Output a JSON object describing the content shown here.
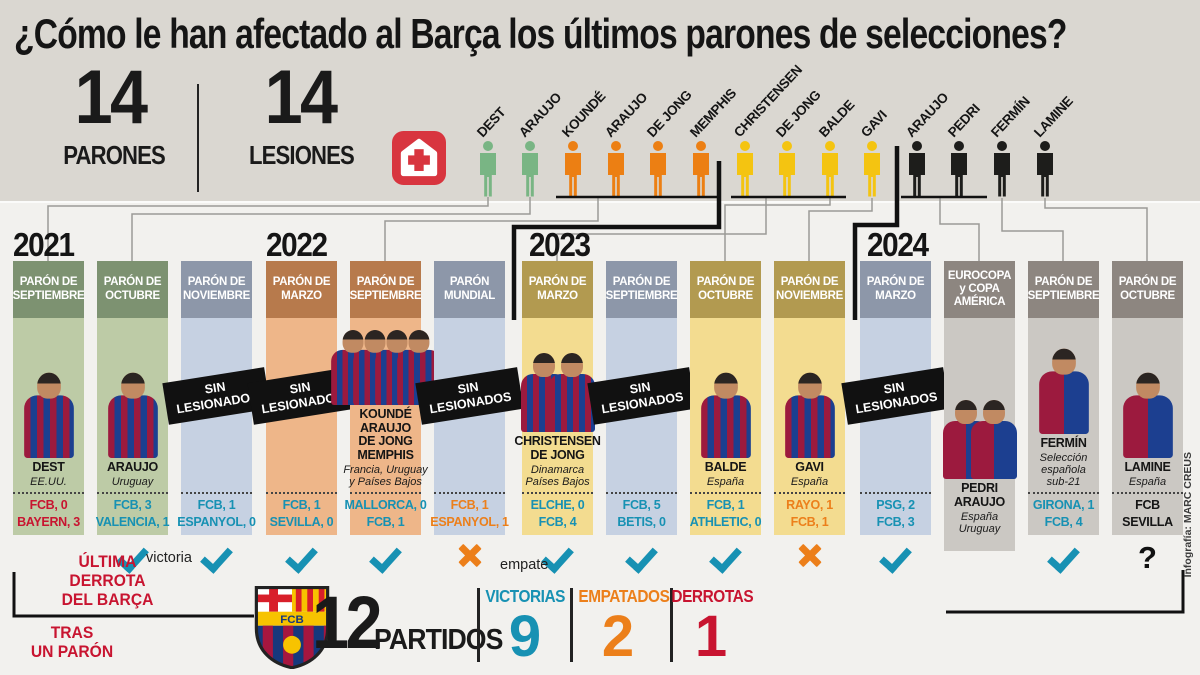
{
  "title": "¿Cómo le han afectado al Barça los últimos parones de selecciones?",
  "stats": {
    "parones": {
      "value": "14",
      "label": "PARONES"
    },
    "lesiones": {
      "value": "14",
      "label": "LESIONES"
    }
  },
  "colors": {
    "win_teal": "#1791b3",
    "draw_orange": "#ec7f1a",
    "loss_red": "#c81430",
    "figure_green": "#79b584",
    "figure_orange": "#ec7f13",
    "figure_yellow": "#f4c411",
    "figure_black": "#1d1d1b",
    "medkit_red": "#d8353f"
  },
  "figures": [
    {
      "name": "DEST",
      "color": "#79b584"
    },
    {
      "name": "ARAUJO",
      "color": "#79b584"
    },
    {
      "name": "KOUNDÉ",
      "color": "#ec7f13"
    },
    {
      "name": "ARAUJO",
      "color": "#ec7f13"
    },
    {
      "name": "DE JONG",
      "color": "#ec7f13"
    },
    {
      "name": "MEMPHIS",
      "color": "#ec7f13"
    },
    {
      "name": "CHRISTENSEN",
      "color": "#f4c411"
    },
    {
      "name": "DE JONG",
      "color": "#f4c411"
    },
    {
      "name": "BALDE",
      "color": "#f4c411"
    },
    {
      "name": "GAVI",
      "color": "#f4c411"
    },
    {
      "name": "ARAUJO",
      "color": "#1d1d1b"
    },
    {
      "name": "PEDRI",
      "color": "#1d1d1b"
    },
    {
      "name": "FERMÍN",
      "color": "#1d1d1b"
    },
    {
      "name": "LAMINE",
      "color": "#1d1d1b"
    }
  ],
  "years": [
    {
      "label": "2021",
      "columns": [
        {
          "header": "PARÓN DE\nSEPTIEMBRE",
          "theme": "green",
          "players": 1,
          "names": "DEST",
          "origin": "EE.UU.",
          "score": [
            "FCB, 0",
            "BAYERN, 3"
          ],
          "score_type": "loss",
          "result": "none"
        },
        {
          "header": "PARÓN DE\nOCTUBRE",
          "theme": "green",
          "players": 1,
          "names": "ARAUJO",
          "origin": "Uruguay",
          "score": [
            "FCB, 3",
            "VALENCIA, 1"
          ],
          "score_type": "win",
          "result": "check"
        },
        {
          "header": "PARÓN DE\nNOVIEMBRE",
          "theme": "blue",
          "players": 0,
          "sin": true,
          "score": [
            "FCB, 1",
            "ESPANYOL, 0"
          ],
          "score_type": "win",
          "result": "check"
        }
      ]
    },
    {
      "label": "2022",
      "columns": [
        {
          "header": "PARÓN DE\nMARZO",
          "theme": "orange",
          "players": 0,
          "sin": true,
          "score": [
            "FCB, 1",
            "SEVILLA, 0"
          ],
          "score_type": "win",
          "result": "check"
        },
        {
          "header": "PARÓN DE\nSEPTIEMBRE",
          "theme": "orange",
          "players": 4,
          "names": "KOUNDÉ\nARAUJO\nDE JONG\nMEMPHIS",
          "origin": "Francia, Uruguay\ny Países Bajos",
          "score": [
            "MALLORCA, 0",
            "FCB, 1"
          ],
          "score_type": "win",
          "result": "check"
        },
        {
          "header": "PARÓN\nMUNDIAL",
          "theme": "blue",
          "players": 0,
          "sin": true,
          "score": [
            "FCB, 1",
            "ESPANYOL, 1"
          ],
          "score_type": "draw",
          "result": "cross"
        }
      ]
    },
    {
      "label": "2023",
      "columns": [
        {
          "header": "PARÓN DE\nMARZO",
          "theme": "gold",
          "players": 2,
          "names": "CHRISTENSEN\nDE JONG",
          "origin": "Dinamarca\nPaíses Bajos",
          "score": [
            "ELCHE, 0",
            "FCB, 4"
          ],
          "score_type": "win",
          "result": "check"
        },
        {
          "header": "PARÓN DE\nSEPTIEMBRE",
          "theme": "blue",
          "players": 0,
          "sin": true,
          "score": [
            "FCB, 5",
            "BETIS, 0"
          ],
          "score_type": "win",
          "result": "check"
        },
        {
          "header": "PARÓN DE\nOCTUBRE",
          "theme": "gold",
          "players": 1,
          "names": "BALDE",
          "origin": "España",
          "score": [
            "FCB, 1",
            "ATHLETIC, 0"
          ],
          "score_type": "win",
          "result": "check"
        },
        {
          "header": "PARÓN DE\nNOVIEMBRE",
          "theme": "gold",
          "players": 1,
          "names": "GAVI",
          "origin": "España",
          "score": [
            "RAYO, 1",
            "FCB, 1"
          ],
          "score_type": "draw",
          "result": "cross"
        }
      ]
    },
    {
      "label": "2024",
      "columns": [
        {
          "header": "PARÓN DE\nMARZO",
          "theme": "blue",
          "players": 0,
          "sin": true,
          "score": [
            "PSG, 2",
            "FCB, 3"
          ],
          "score_type": "win",
          "result": "check"
        },
        {
          "header": "EUROCOPA\ny COPA\nAMÉRICA",
          "theme": "gray",
          "players": 2,
          "names": "PEDRI\nARAUJO",
          "origin": "España\nUruguay",
          "score": null,
          "result": "none"
        },
        {
          "header": "PARÓN DE\nSEPTIEMBRE",
          "theme": "gray",
          "players": 1,
          "names": "FERMÍN",
          "origin": "Selección\nespañola\nsub-21",
          "score": [
            "GIRONA, 1",
            "FCB, 4"
          ],
          "score_type": "win",
          "result": "check"
        },
        {
          "header": "PARÓN DE\nOCTUBRE",
          "theme": "gray",
          "players": 1,
          "names": "LAMINE",
          "origin": "España",
          "score": [
            "FCB",
            "SEVILLA"
          ],
          "score_type": "pending",
          "result": "question"
        }
      ]
    }
  ],
  "annotations": {
    "sin_lesionados": "SIN\nLESIONADOS",
    "victoria_label": "victoria",
    "empate_label": "empate",
    "ultima_derrota": "ÚLTIMA\nDERROTA\nDEL BARÇA",
    "tras_un_paron": "TRAS\nUN PARÓN",
    "question_mark": "?",
    "crest_text": "FCB",
    "credit": "Infografía: MARC CREUS"
  },
  "summary": {
    "partidos": {
      "value": "12",
      "label": "PARTIDOS"
    },
    "victorias": {
      "label": "VICTORIAS",
      "value": "9"
    },
    "empatados": {
      "label": "EMPATADOS",
      "value": "2"
    },
    "derrotas": {
      "label": "DERROTAS",
      "value": "1"
    }
  }
}
